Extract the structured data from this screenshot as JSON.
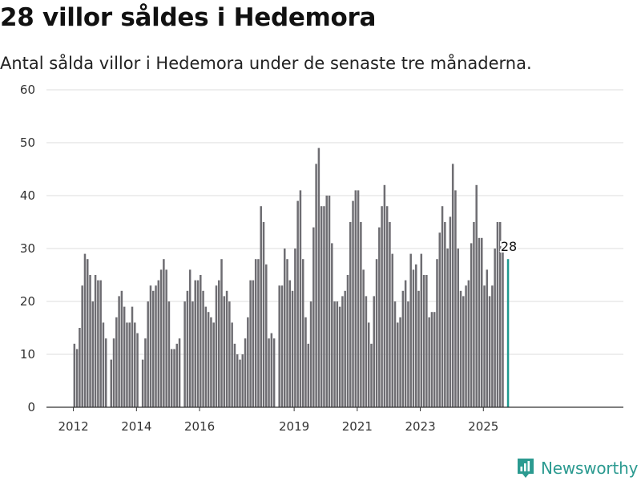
{
  "title": "28 villor såldes i Hedemora",
  "subtitle": "Antal sålda villor i Hedemora under de senaste tre månaderna.",
  "brand": {
    "name": "Newsworthy",
    "icon": "newsworthy-logo-icon",
    "color": "#2b9a90"
  },
  "colors": {
    "bar": "#6e6d72",
    "highlight": "#1f9a8f",
    "grid": "#dddddd"
  },
  "chart_data": {
    "type": "bar",
    "ylim": [
      0,
      60
    ],
    "yticks": [
      0,
      10,
      20,
      30,
      40,
      50,
      60
    ],
    "xticks": [
      "2012",
      "2014",
      "2016",
      "2019",
      "2021",
      "2023",
      "2025"
    ],
    "start": "2012-01",
    "highlight_label": "28",
    "segments": [
      [
        12,
        11,
        15,
        23,
        29,
        28,
        25,
        20,
        25,
        24,
        24,
        16,
        13
      ],
      [
        9,
        13,
        17,
        21,
        22,
        19,
        16,
        16,
        19,
        16,
        14
      ],
      [
        9,
        13,
        20,
        23,
        22,
        23,
        24,
        26,
        28,
        26,
        20,
        11,
        11,
        12,
        13
      ],
      [
        20,
        22,
        26,
        20,
        24,
        24,
        25,
        22,
        19,
        18,
        17,
        16,
        23,
        24,
        28,
        21,
        22,
        20,
        16,
        12,
        10,
        9,
        10,
        13,
        17,
        24,
        24,
        28,
        28,
        38,
        35,
        27,
        13,
        14,
        13
      ],
      [
        23,
        23,
        30,
        28,
        24,
        22,
        30,
        39,
        41,
        28,
        17,
        12,
        20,
        34,
        46,
        49,
        38,
        38,
        40,
        40,
        31,
        20,
        20,
        19,
        21,
        22,
        25,
        35,
        39,
        41,
        41,
        35,
        26,
        21,
        16,
        12,
        21,
        28,
        34,
        38,
        42,
        38,
        35,
        29,
        20,
        16,
        17,
        22,
        24,
        20,
        29,
        26,
        27,
        22,
        29,
        25,
        25,
        17,
        18,
        18,
        28,
        33,
        38,
        35,
        30,
        36,
        46,
        41,
        30,
        22,
        21,
        23,
        24,
        31,
        35,
        42,
        32,
        32,
        23,
        26,
        21,
        23,
        30,
        35,
        35,
        30
      ],
      [
        28
      ]
    ]
  }
}
